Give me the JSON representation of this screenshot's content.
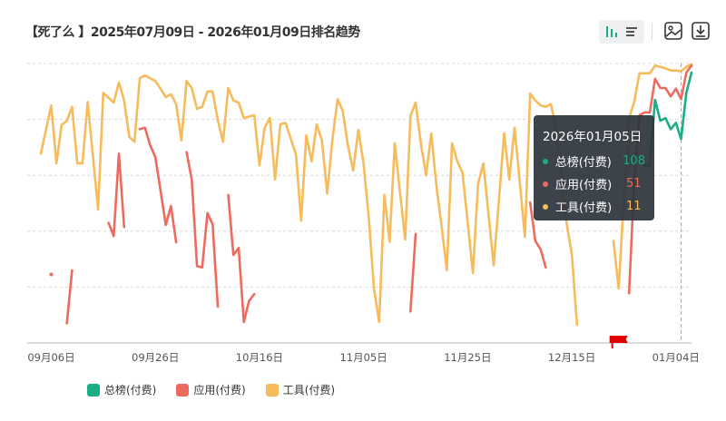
{
  "header": {
    "title": "【死了么 】2025年07月09日 - 2026年01月09日排名趋势"
  },
  "toolbar": {
    "icons": [
      "bar-chart-icon",
      "list-icon",
      "image-export-icon",
      "download-icon"
    ]
  },
  "tooltip": {
    "date": "2026年01月05日",
    "rows": [
      {
        "name": "总榜(付费)",
        "value": "108",
        "color": "#1aae88"
      },
      {
        "name": "应用(付费)",
        "value": "51",
        "color": "#ee6a5e"
      },
      {
        "name": "工具(付费)",
        "value": "11",
        "color": "#f6bb5a"
      }
    ]
  },
  "chart_data": {
    "type": "line",
    "title": "",
    "xlabel": "",
    "ylabel": "",
    "y_inverted": true,
    "y_axis_labels_shown": false,
    "ylim": [
      0,
      400
    ],
    "xlim": [
      "2025-09-04",
      "2026-01-07"
    ],
    "grid": "horizontal-dashed",
    "x_ticks": [
      {
        "date": "2025-09-06",
        "label": "09月06日"
      },
      {
        "date": "2025-09-26",
        "label": "09月26日"
      },
      {
        "date": "2025-10-16",
        "label": "10月16日"
      },
      {
        "date": "2025-11-05",
        "label": "11月05日"
      },
      {
        "date": "2025-11-25",
        "label": "11月25日"
      },
      {
        "date": "2025-12-15",
        "label": "12月15日"
      },
      {
        "date": "2026-01-04",
        "label": "01月04日"
      }
    ],
    "hover_date": "2026-01-05",
    "marker_flag_date": "2025-12-24",
    "legend_position": "bottom-left",
    "series": [
      {
        "name": "总榜(付费)",
        "color": "#1aae88",
        "segments": [
          [
            [
              "2025-12-29",
              146
            ],
            [
              "2025-12-30",
              146
            ],
            [
              "2025-12-31",
              52
            ],
            [
              "2026-01-01",
              82
            ],
            [
              "2026-01-02",
              78
            ],
            [
              "2026-01-03",
              94
            ],
            [
              "2026-01-04",
              85
            ],
            [
              "2026-01-05",
              108
            ],
            [
              "2026-01-06",
              42
            ],
            [
              "2026-01-07",
              13
            ]
          ]
        ]
      },
      {
        "name": "应用(付费)",
        "color": "#ee6a5e",
        "segments": [
          [
            [
              "2025-09-06",
              302
            ]
          ],
          [
            [
              "2025-09-09",
              372
            ],
            [
              "2025-09-10",
              296
            ]
          ],
          [
            [
              "2025-09-17",
              228
            ],
            [
              "2025-09-18",
              247
            ],
            [
              "2025-09-19",
              129
            ],
            [
              "2025-09-20",
              234
            ]
          ],
          [
            [
              "2025-09-23",
              94
            ],
            [
              "2025-09-24",
              92
            ],
            [
              "2025-09-25",
              117
            ],
            [
              "2025-09-26",
              134
            ],
            [
              "2025-09-27",
              182
            ],
            [
              "2025-09-28",
              231
            ],
            [
              "2025-09-29",
              204
            ],
            [
              "2025-09-30",
              256
            ]
          ],
          [
            [
              "2025-10-02",
              127
            ],
            [
              "2025-10-03",
              166
            ],
            [
              "2025-10-04",
              290
            ],
            [
              "2025-10-05",
              292
            ],
            [
              "2025-10-06",
              214
            ],
            [
              "2025-10-07",
              230
            ],
            [
              "2025-10-08",
              348
            ]
          ],
          [
            [
              "2025-10-10",
              188
            ],
            [
              "2025-10-11",
              274
            ],
            [
              "2025-10-12",
              264
            ],
            [
              "2025-10-13",
              370
            ],
            [
              "2025-10-14",
              340
            ],
            [
              "2025-10-15",
              330
            ]
          ],
          [
            [
              "2025-11-14",
              355
            ],
            [
              "2025-11-15",
              244
            ]
          ],
          [
            [
              "2025-12-07",
              199
            ],
            [
              "2025-12-08",
              254
            ],
            [
              "2025-12-09",
              266
            ],
            [
              "2025-12-10",
              292
            ]
          ],
          [
            [
              "2025-12-26",
              329
            ],
            [
              "2025-12-27",
              166
            ],
            [
              "2025-12-28",
              74
            ],
            [
              "2025-12-29",
              70
            ],
            [
              "2025-12-30",
              70
            ],
            [
              "2025-12-31",
              22
            ],
            [
              "2026-01-01",
              35
            ],
            [
              "2026-01-02",
              35
            ],
            [
              "2026-01-03",
              47
            ],
            [
              "2026-01-04",
              36
            ],
            [
              "2026-01-05",
              51
            ],
            [
              "2026-01-06",
              13
            ],
            [
              "2026-01-07",
              3
            ]
          ]
        ]
      },
      {
        "name": "工具(付费)",
        "color": "#f6bb5a",
        "segments": [
          [
            [
              "2025-09-04",
              129
            ],
            [
              "2025-09-06",
              60
            ],
            [
              "2025-09-07",
              143
            ],
            [
              "2025-09-08",
              88
            ],
            [
              "2025-09-09",
              82
            ],
            [
              "2025-09-10",
              62
            ],
            [
              "2025-09-11",
              143
            ],
            [
              "2025-09-12",
              143
            ],
            [
              "2025-09-13",
              55
            ],
            [
              "2025-09-15",
              209
            ],
            [
              "2025-09-16",
              42
            ],
            [
              "2025-09-18",
              56
            ],
            [
              "2025-09-19",
              27
            ],
            [
              "2025-09-20",
              53
            ],
            [
              "2025-09-21",
              105
            ],
            [
              "2025-09-22",
              112
            ],
            [
              "2025-09-23",
              21
            ],
            [
              "2025-09-24",
              17
            ],
            [
              "2025-09-26",
              25
            ],
            [
              "2025-09-27",
              36
            ],
            [
              "2025-09-28",
              48
            ],
            [
              "2025-09-29",
              44
            ],
            [
              "2025-09-30",
              58
            ],
            [
              "2025-10-01",
              110
            ],
            [
              "2025-10-02",
              25
            ],
            [
              "2025-10-03",
              35
            ],
            [
              "2025-10-04",
              65
            ],
            [
              "2025-10-05",
              62
            ],
            [
              "2025-10-06",
              40
            ],
            [
              "2025-10-07",
              40
            ],
            [
              "2025-10-08",
              81
            ],
            [
              "2025-10-09",
              112
            ],
            [
              "2025-10-10",
              35
            ],
            [
              "2025-10-11",
              53
            ],
            [
              "2025-10-12",
              56
            ],
            [
              "2025-10-13",
              78
            ],
            [
              "2025-10-15",
              74
            ],
            [
              "2025-10-16",
              146
            ],
            [
              "2025-10-17",
              92
            ],
            [
              "2025-10-18",
              78
            ],
            [
              "2025-10-19",
              166
            ],
            [
              "2025-10-20",
              87
            ],
            [
              "2025-10-21",
              85
            ],
            [
              "2025-10-23",
              130
            ],
            [
              "2025-10-24",
              225
            ],
            [
              "2025-10-25",
              103
            ],
            [
              "2025-10-26",
              140
            ],
            [
              "2025-10-27",
              87
            ],
            [
              "2025-10-28",
              110
            ],
            [
              "2025-10-29",
              186
            ],
            [
              "2025-10-30",
              110
            ],
            [
              "2025-10-31",
              51
            ],
            [
              "2025-11-01",
              68
            ],
            [
              "2025-11-02",
              117
            ],
            [
              "2025-11-03",
              153
            ],
            [
              "2025-11-04",
              95
            ],
            [
              "2025-11-05",
              143
            ],
            [
              "2025-11-06",
              221
            ],
            [
              "2025-11-07",
              322
            ],
            [
              "2025-11-08",
              370
            ],
            [
              "2025-11-09",
              188
            ],
            [
              "2025-11-10",
              255
            ],
            [
              "2025-11-11",
              114
            ],
            [
              "2025-11-12",
              185
            ],
            [
              "2025-11-13",
              252
            ],
            [
              "2025-11-14",
              75
            ],
            [
              "2025-11-15",
              56
            ],
            [
              "2025-11-16",
              114
            ],
            [
              "2025-11-17",
              160
            ],
            [
              "2025-11-18",
              100
            ],
            [
              "2025-11-19",
              175
            ],
            [
              "2025-11-20",
              234
            ],
            [
              "2025-11-21",
              296
            ],
            [
              "2025-11-22",
              114
            ],
            [
              "2025-11-23",
              140
            ],
            [
              "2025-11-24",
              156
            ],
            [
              "2025-11-25",
              228
            ],
            [
              "2025-11-26",
              300
            ],
            [
              "2025-11-27",
              172
            ],
            [
              "2025-11-28",
              143
            ],
            [
              "2025-11-29",
              216
            ],
            [
              "2025-11-30",
              289
            ],
            [
              "2025-12-01",
              195
            ],
            [
              "2025-12-02",
              100
            ],
            [
              "2025-12-03",
              166
            ],
            [
              "2025-12-04",
              92
            ],
            [
              "2025-12-05",
              169
            ],
            [
              "2025-12-06",
              248
            ],
            [
              "2025-12-07",
              43
            ],
            [
              "2025-12-08",
              53
            ],
            [
              "2025-12-09",
              60
            ],
            [
              "2025-12-10",
              62
            ],
            [
              "2025-12-11",
              58
            ],
            [
              "2025-12-12",
              94
            ],
            [
              "2025-12-13",
              156
            ],
            [
              "2025-12-14",
              228
            ],
            [
              "2025-12-15",
              273
            ],
            [
              "2025-12-16",
              374
            ]
          ],
          [
            [
              "2025-12-23",
              254
            ],
            [
              "2025-12-24",
              322
            ],
            [
              "2025-12-25",
              195
            ],
            [
              "2025-12-26",
              78
            ],
            [
              "2025-12-27",
              55
            ],
            [
              "2025-12-28",
              14
            ],
            [
              "2025-12-29",
              14
            ],
            [
              "2025-12-30",
              14
            ],
            [
              "2025-12-31",
              3
            ],
            [
              "2026-01-01",
              5
            ],
            [
              "2026-01-02",
              7
            ],
            [
              "2026-01-03",
              10
            ],
            [
              "2026-01-04",
              10
            ],
            [
              "2026-01-05",
              11
            ],
            [
              "2026-01-06",
              5
            ],
            [
              "2026-01-07",
              1
            ]
          ]
        ]
      }
    ]
  }
}
